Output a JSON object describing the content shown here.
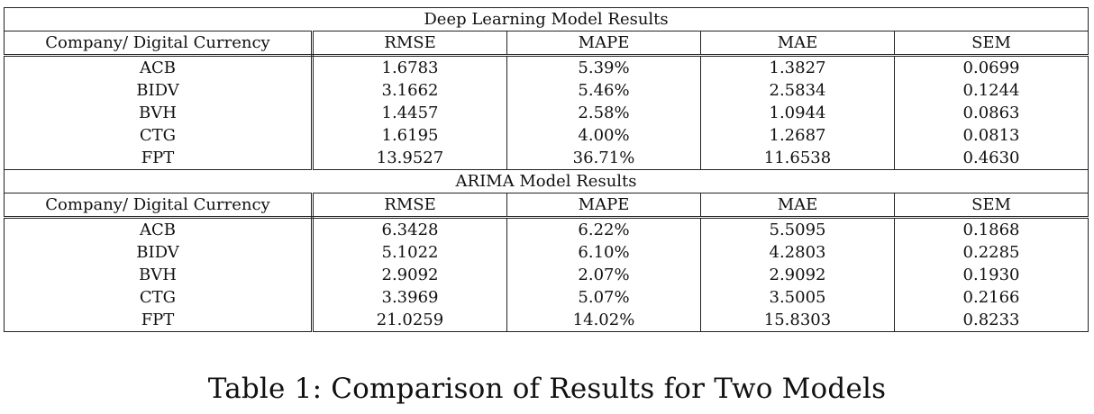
{
  "sections": [
    {
      "title": "Deep Learning Model Results",
      "columns": [
        "Company/ Digital Currency",
        "RMSE",
        "MAPE",
        "MAE",
        "SEM"
      ],
      "rows": [
        [
          "ACB",
          "1.6783",
          "5.39%",
          "1.3827",
          "0.0699"
        ],
        [
          "BIDV",
          "3.1662",
          "5.46%",
          "2.5834",
          "0.1244"
        ],
        [
          "BVH",
          "1.4457",
          "2.58%",
          "1.0944",
          "0.0863"
        ],
        [
          "CTG",
          "1.6195",
          "4.00%",
          "1.2687",
          "0.0813"
        ],
        [
          "FPT",
          "13.9527",
          "36.71%",
          "11.6538",
          "0.4630"
        ]
      ]
    },
    {
      "title": "ARIMA Model Results",
      "columns": [
        "Company/ Digital Currency",
        "RMSE",
        "MAPE",
        "MAE",
        "SEM"
      ],
      "rows": [
        [
          "ACB",
          "6.3428",
          "6.22%",
          "5.5095",
          "0.1868"
        ],
        [
          "BIDV",
          "5.1022",
          "6.10%",
          "4.2803",
          "0.2285"
        ],
        [
          "BVH",
          "2.9092",
          "2.07%",
          "2.9092",
          "0.1930"
        ],
        [
          "CTG",
          "3.3969",
          "5.07%",
          "3.5005",
          "0.2166"
        ],
        [
          "FPT",
          "21.0259",
          "14.02%",
          "15.8303",
          "0.8233"
        ]
      ]
    }
  ],
  "caption": "Table 1: Comparison of Results for Two Models"
}
